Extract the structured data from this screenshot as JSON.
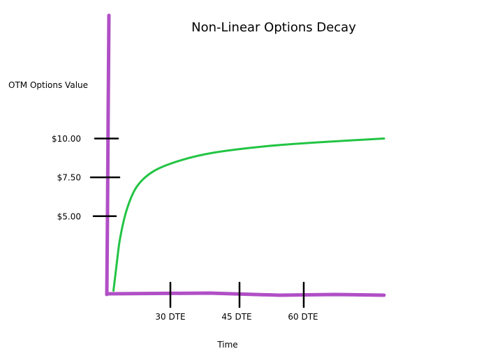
{
  "chart_data": {
    "type": "line",
    "title": "Non-Linear Options Decay",
    "xlabel": "Time",
    "ylabel": "OTM Options Value",
    "x_ticks": [
      "30 DTE",
      "45 DTE",
      "60 DTE"
    ],
    "y_ticks": [
      "$10.00",
      "$7.50",
      "$5.00"
    ],
    "y_tick_values": [
      10,
      7.5,
      5
    ],
    "ylim": [
      0,
      17
    ],
    "grid": false,
    "legend": "none",
    "series": [
      {
        "points": [
          {
            "x": 0.1,
            "y": 0.2
          },
          {
            "x": 1,
            "y": 1.8
          },
          {
            "x": 2,
            "y": 3.5
          },
          {
            "x": 4,
            "y": 5.4
          },
          {
            "x": 7,
            "y": 6.9
          },
          {
            "x": 12,
            "y": 7.9
          },
          {
            "x": 20,
            "y": 8.6
          },
          {
            "x": 30,
            "y": 9.1
          },
          {
            "x": 45,
            "y": 9.5
          },
          {
            "x": 60,
            "y": 9.75
          },
          {
            "x": 80,
            "y": 10.0
          }
        ]
      }
    ],
    "colors": {
      "axis": "#b04fc6",
      "curve": "#22c443",
      "ticks": "#000000"
    }
  }
}
